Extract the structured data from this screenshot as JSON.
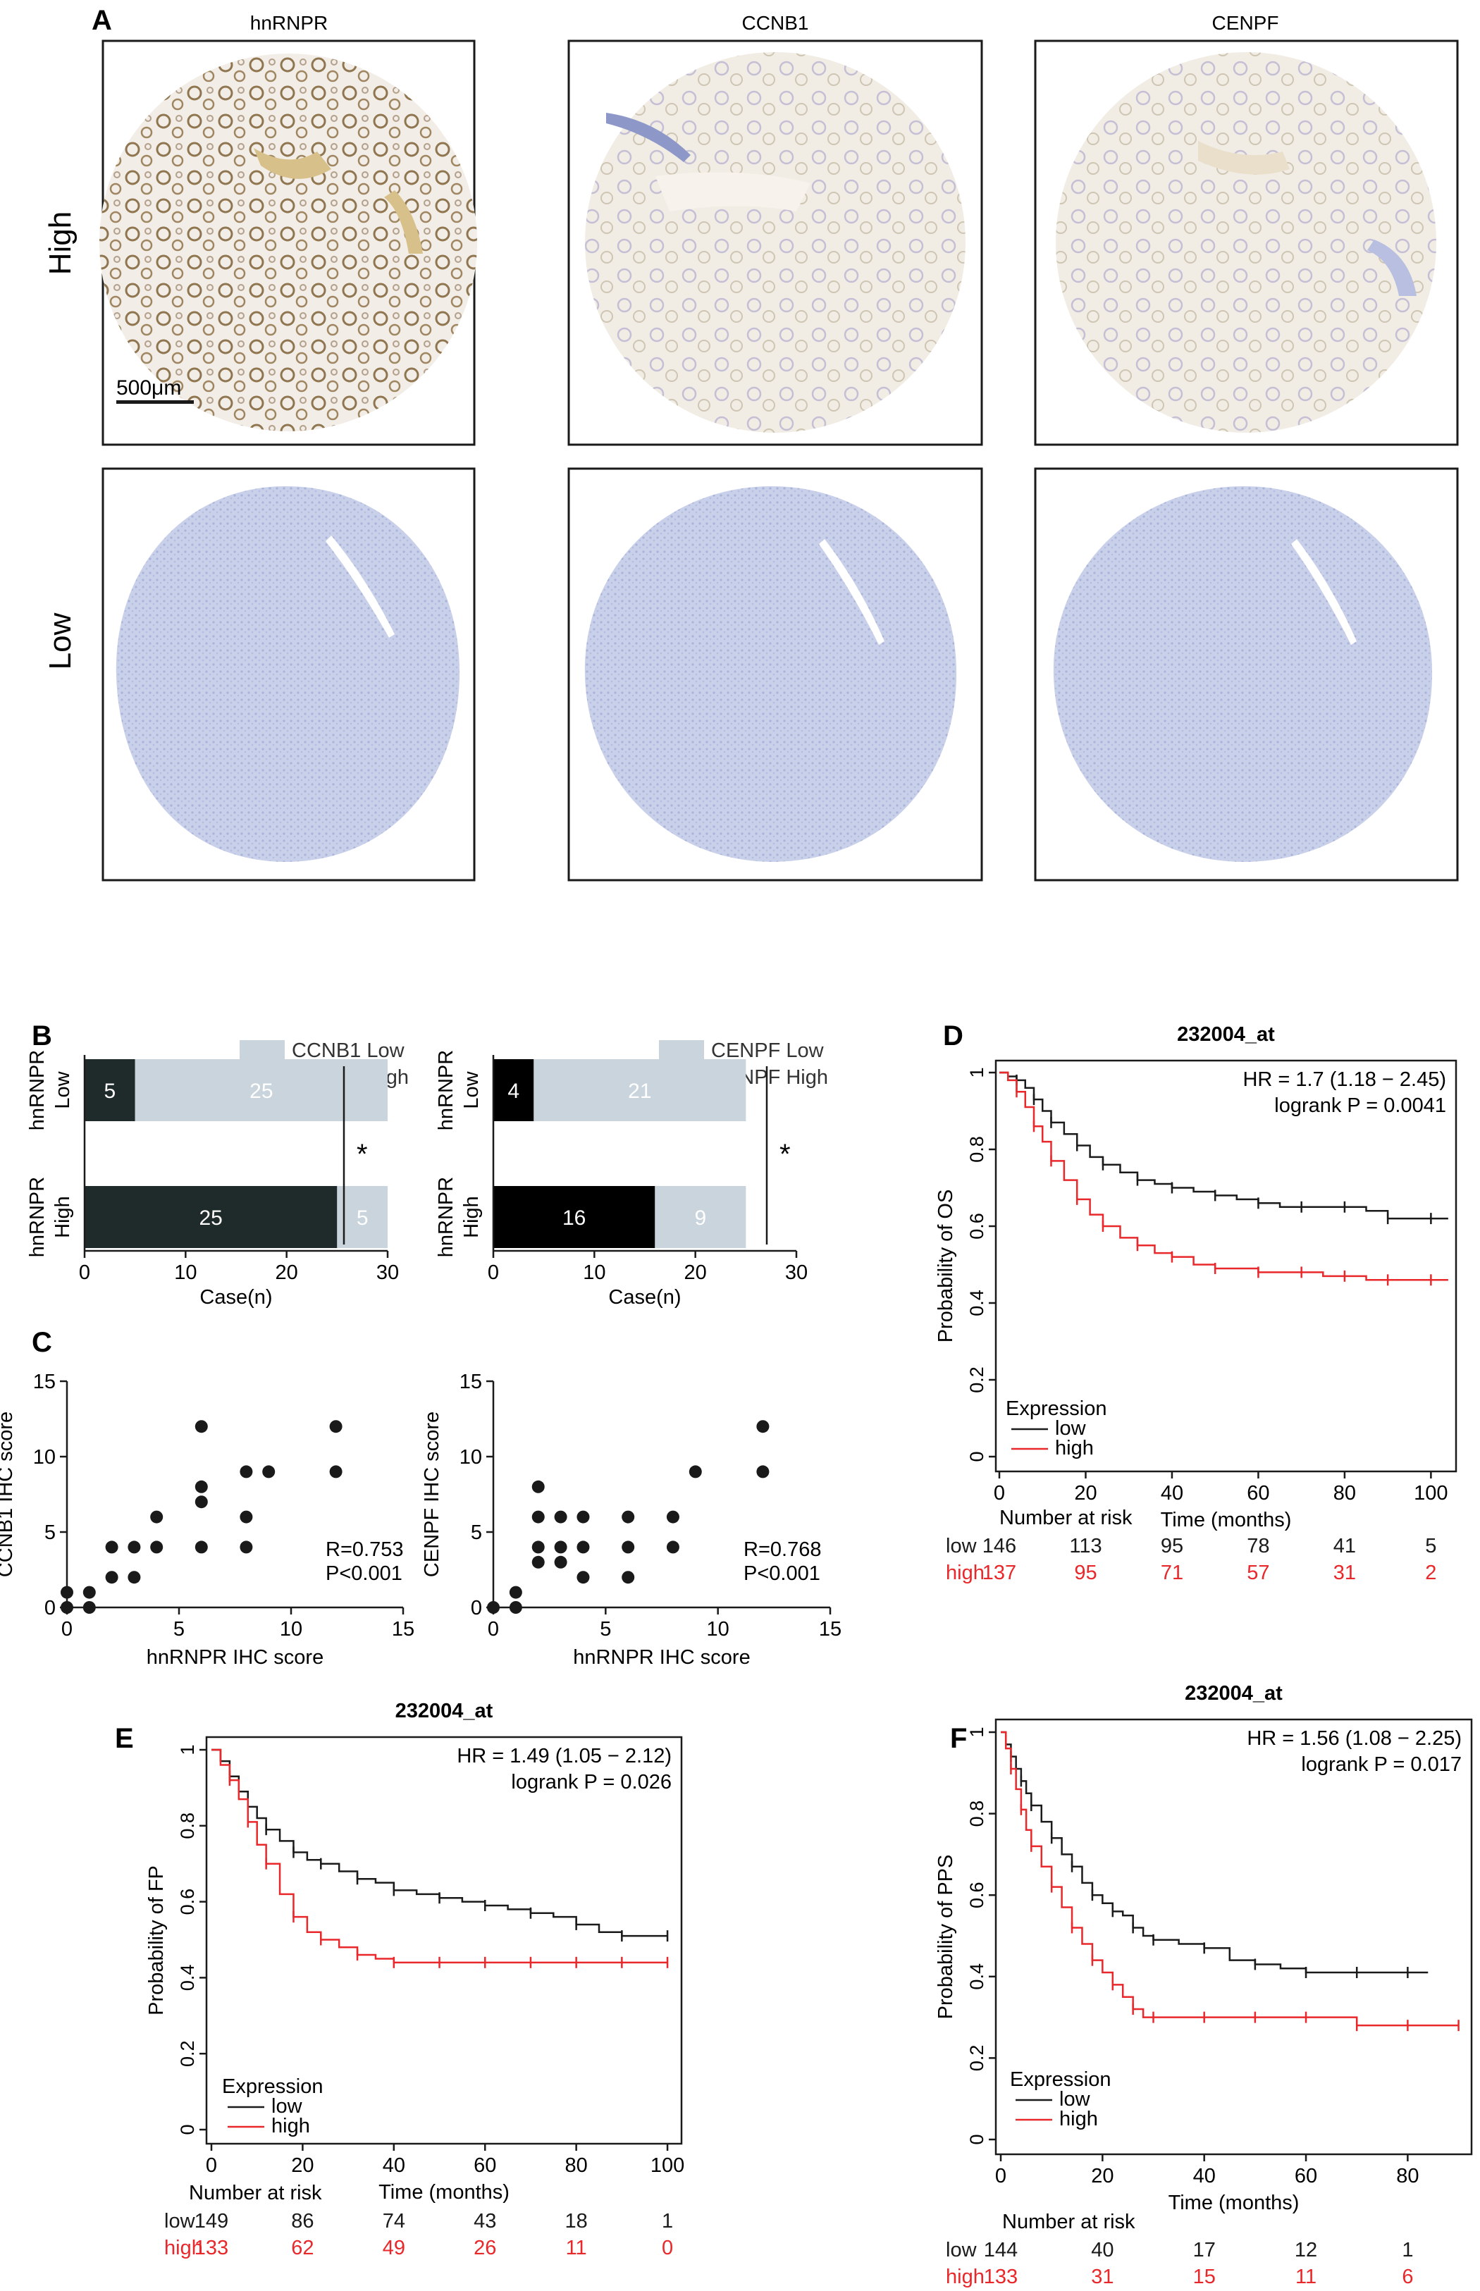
{
  "panel_labels": [
    "A",
    "B",
    "C",
    "D",
    "E",
    "F"
  ],
  "panel_a": {
    "columns": [
      "hnRNPR",
      "CCNB1",
      "CENPF"
    ],
    "rows": [
      "High",
      "Low"
    ],
    "scale_bar": "500μm"
  },
  "colors": {
    "low_series": "#1a1a1a",
    "high_series": "#e8282b",
    "light_bar": "#c9d4dc",
    "dark_bar": "#1f2a2a",
    "stain_brown": "#a08660",
    "stain_blue": "#c9d0ea"
  },
  "chart_data": [
    {
      "id": "B-left",
      "type": "bar",
      "orientation": "horizontal",
      "stacked": true,
      "categories": [
        "Low",
        "High"
      ],
      "group_axis_label": "hnRNPR",
      "series": [
        {
          "name": "CCNB1 High",
          "values": [
            5,
            25
          ],
          "color": "#1f2a2a"
        },
        {
          "name": "CCNB1 Low",
          "values": [
            25,
            5
          ],
          "color": "#c9d4dc"
        }
      ],
      "xlabel": "Case(n)",
      "xlim": [
        0,
        30
      ],
      "xticks": [
        0,
        10,
        20,
        30
      ],
      "significance": "*",
      "legend": "top-right"
    },
    {
      "id": "B-right",
      "type": "bar",
      "orientation": "horizontal",
      "stacked": true,
      "categories": [
        "Low",
        "High"
      ],
      "group_axis_label": "hnRNPR",
      "series": [
        {
          "name": "CENPF High",
          "values": [
            4,
            16
          ],
          "color": "#000000"
        },
        {
          "name": "CENPF Low",
          "values": [
            21,
            9
          ],
          "color": "#c9d4dc"
        }
      ],
      "xlabel": "Case(n)",
      "xlim": [
        0,
        30
      ],
      "xticks": [
        0,
        10,
        20,
        30
      ],
      "significance": "*",
      "legend": "top-right"
    },
    {
      "id": "C-left",
      "type": "scatter",
      "xlabel": "hnRNPR IHC score",
      "ylabel": "CCNB1 IHC score",
      "xlim": [
        0,
        15
      ],
      "ylim": [
        0,
        15
      ],
      "xticks": [
        0,
        5,
        10,
        15
      ],
      "yticks": [
        0,
        5,
        10,
        15
      ],
      "annotation": [
        "R=0.753",
        "P<0.001"
      ],
      "points": [
        [
          0,
          0
        ],
        [
          0,
          1
        ],
        [
          1,
          0
        ],
        [
          1,
          1
        ],
        [
          2,
          2
        ],
        [
          2,
          4
        ],
        [
          3,
          2
        ],
        [
          3,
          4
        ],
        [
          4,
          4
        ],
        [
          4,
          6
        ],
        [
          6,
          4
        ],
        [
          6,
          7
        ],
        [
          6,
          8
        ],
        [
          6,
          12
        ],
        [
          8,
          4
        ],
        [
          8,
          6
        ],
        [
          8,
          9
        ],
        [
          9,
          9
        ],
        [
          12,
          9
        ],
        [
          12,
          12
        ]
      ]
    },
    {
      "id": "C-right",
      "type": "scatter",
      "xlabel": "hnRNPR IHC score",
      "ylabel": "CENPF IHC score",
      "xlim": [
        0,
        15
      ],
      "ylim": [
        0,
        15
      ],
      "xticks": [
        0,
        5,
        10,
        15
      ],
      "yticks": [
        0,
        5,
        10,
        15
      ],
      "annotation": [
        "R=0.768",
        "P<0.001"
      ],
      "points": [
        [
          0,
          0
        ],
        [
          1,
          0
        ],
        [
          1,
          1
        ],
        [
          2,
          3
        ],
        [
          2,
          4
        ],
        [
          2,
          6
        ],
        [
          2,
          8
        ],
        [
          3,
          3
        ],
        [
          3,
          4
        ],
        [
          3,
          6
        ],
        [
          4,
          2
        ],
        [
          4,
          4
        ],
        [
          4,
          6
        ],
        [
          6,
          2
        ],
        [
          6,
          4
        ],
        [
          6,
          6
        ],
        [
          8,
          4
        ],
        [
          8,
          6
        ],
        [
          9,
          9
        ],
        [
          12,
          9
        ],
        [
          12,
          12
        ]
      ]
    },
    {
      "id": "D",
      "type": "line",
      "subtype": "kaplan-meier",
      "title": "232004_at",
      "xlabel": "Time (months)",
      "ylabel": "Probability of OS",
      "xlim": [
        0,
        105
      ],
      "ylim": [
        0,
        1
      ],
      "xticks": [
        0,
        20,
        40,
        60,
        80,
        100
      ],
      "yticks": [
        0.0,
        0.2,
        0.4,
        0.6,
        0.8,
        1.0
      ],
      "stats": [
        "HR = 1.7 (1.18 − 2.45)",
        "logrank P = 0.0041"
      ],
      "legend_title": "Expression",
      "legend": "bottom-left",
      "series": [
        {
          "name": "low",
          "color": "#1a1a1a",
          "x": [
            0,
            2,
            4,
            6,
            8,
            10,
            12,
            15,
            18,
            21,
            24,
            28,
            32,
            36,
            40,
            45,
            50,
            55,
            60,
            65,
            70,
            75,
            80,
            85,
            90,
            95,
            100,
            104
          ],
          "y": [
            1.0,
            0.99,
            0.98,
            0.96,
            0.93,
            0.9,
            0.87,
            0.84,
            0.81,
            0.78,
            0.76,
            0.74,
            0.72,
            0.71,
            0.7,
            0.69,
            0.68,
            0.67,
            0.66,
            0.65,
            0.65,
            0.65,
            0.65,
            0.64,
            0.62,
            0.62,
            0.62,
            0.62
          ]
        },
        {
          "name": "high",
          "color": "#e8282b",
          "x": [
            0,
            2,
            4,
            6,
            8,
            10,
            12,
            15,
            18,
            21,
            24,
            28,
            32,
            36,
            40,
            45,
            50,
            55,
            60,
            65,
            70,
            75,
            80,
            85,
            90,
            95,
            100,
            104
          ],
          "y": [
            1.0,
            0.98,
            0.95,
            0.91,
            0.86,
            0.82,
            0.77,
            0.72,
            0.67,
            0.63,
            0.6,
            0.57,
            0.55,
            0.53,
            0.52,
            0.5,
            0.49,
            0.49,
            0.48,
            0.48,
            0.48,
            0.47,
            0.47,
            0.46,
            0.46,
            0.46,
            0.46,
            0.46
          ]
        }
      ],
      "risk_table": {
        "title": "Number at risk",
        "times": [
          0,
          20,
          40,
          60,
          80,
          100
        ],
        "rows": [
          {
            "label": "low",
            "values": [
              146,
              113,
              95,
              78,
              41,
              5
            ]
          },
          {
            "label": "high",
            "values": [
              137,
              95,
              71,
              57,
              31,
              2
            ]
          }
        ]
      }
    },
    {
      "id": "E",
      "type": "line",
      "subtype": "kaplan-meier",
      "title": "232004_at",
      "xlabel": "Time (months)",
      "ylabel": "Probability of FP",
      "xlim": [
        0,
        102
      ],
      "ylim": [
        0,
        1
      ],
      "xticks": [
        0,
        20,
        40,
        60,
        80,
        100
      ],
      "yticks": [
        0.0,
        0.2,
        0.4,
        0.6,
        0.8,
        1.0
      ],
      "stats": [
        "HR = 1.49 (1.05 − 2.12)",
        "logrank P = 0.026"
      ],
      "legend_title": "Expression",
      "legend": "bottom-left",
      "series": [
        {
          "name": "low",
          "color": "#1a1a1a",
          "x": [
            0,
            2,
            4,
            6,
            8,
            10,
            12,
            15,
            18,
            21,
            24,
            28,
            32,
            36,
            40,
            45,
            50,
            55,
            60,
            65,
            70,
            75,
            80,
            85,
            90,
            95,
            100
          ],
          "y": [
            1.0,
            0.97,
            0.93,
            0.89,
            0.85,
            0.82,
            0.79,
            0.76,
            0.73,
            0.71,
            0.7,
            0.68,
            0.66,
            0.65,
            0.63,
            0.62,
            0.61,
            0.6,
            0.59,
            0.58,
            0.57,
            0.56,
            0.54,
            0.52,
            0.51,
            0.51,
            0.51
          ]
        },
        {
          "name": "high",
          "color": "#e8282b",
          "x": [
            0,
            2,
            4,
            6,
            8,
            10,
            12,
            15,
            18,
            21,
            24,
            28,
            32,
            36,
            40,
            45,
            50,
            55,
            60,
            65,
            70,
            75,
            80,
            85,
            90,
            95,
            100
          ],
          "y": [
            1.0,
            0.96,
            0.92,
            0.87,
            0.81,
            0.75,
            0.7,
            0.62,
            0.56,
            0.52,
            0.5,
            0.48,
            0.46,
            0.45,
            0.44,
            0.44,
            0.44,
            0.44,
            0.44,
            0.44,
            0.44,
            0.44,
            0.44,
            0.44,
            0.44,
            0.44,
            0.44
          ]
        }
      ],
      "risk_table": {
        "title": "Number at risk",
        "times": [
          0,
          20,
          40,
          60,
          80,
          100
        ],
        "rows": [
          {
            "label": "low",
            "values": [
              149,
              86,
              74,
              43,
              18,
              1
            ]
          },
          {
            "label": "high",
            "values": [
              133,
              62,
              49,
              26,
              11,
              0
            ]
          }
        ]
      }
    },
    {
      "id": "F",
      "type": "line",
      "subtype": "kaplan-meier",
      "title": "232004_at",
      "xlabel": "Time (months)",
      "ylabel": "Probability of PPS",
      "xlim": [
        0,
        92
      ],
      "ylim": [
        0,
        1
      ],
      "xticks": [
        0,
        20,
        40,
        60,
        80
      ],
      "yticks": [
        0.0,
        0.2,
        0.4,
        0.6,
        0.8,
        1.0
      ],
      "stats": [
        "HR = 1.56 (1.08 − 2.25)",
        "logrank P = 0.017"
      ],
      "legend_title": "Expression",
      "legend": "bottom-left",
      "series": [
        {
          "name": "low",
          "color": "#1a1a1a",
          "x": [
            0,
            1,
            2,
            3,
            4,
            5,
            6,
            8,
            10,
            12,
            14,
            16,
            18,
            20,
            22,
            24,
            26,
            28,
            30,
            35,
            40,
            45,
            50,
            55,
            60,
            65,
            70,
            75,
            80,
            84
          ],
          "y": [
            1.0,
            0.97,
            0.94,
            0.91,
            0.88,
            0.85,
            0.82,
            0.78,
            0.74,
            0.7,
            0.67,
            0.63,
            0.6,
            0.58,
            0.56,
            0.55,
            0.52,
            0.5,
            0.49,
            0.48,
            0.47,
            0.44,
            0.43,
            0.42,
            0.41,
            0.41,
            0.41,
            0.41,
            0.41,
            0.41
          ]
        },
        {
          "name": "high",
          "color": "#e8282b",
          "x": [
            0,
            1,
            2,
            3,
            4,
            5,
            6,
            8,
            10,
            12,
            14,
            16,
            18,
            20,
            22,
            24,
            26,
            28,
            30,
            35,
            40,
            45,
            50,
            55,
            60,
            65,
            70,
            75,
            80,
            85,
            90
          ],
          "y": [
            1.0,
            0.96,
            0.91,
            0.86,
            0.81,
            0.76,
            0.72,
            0.67,
            0.62,
            0.57,
            0.52,
            0.48,
            0.44,
            0.41,
            0.38,
            0.35,
            0.32,
            0.3,
            0.3,
            0.3,
            0.3,
            0.3,
            0.3,
            0.3,
            0.3,
            0.3,
            0.28,
            0.28,
            0.28,
            0.28,
            0.28
          ]
        }
      ],
      "risk_table": {
        "title": "Number at risk",
        "times": [
          0,
          20,
          40,
          60,
          80
        ],
        "rows": [
          {
            "label": "low",
            "values": [
              144,
              40,
              17,
              12,
              1
            ]
          },
          {
            "label": "high",
            "values": [
              133,
              31,
              15,
              11,
              6
            ]
          }
        ]
      }
    }
  ]
}
